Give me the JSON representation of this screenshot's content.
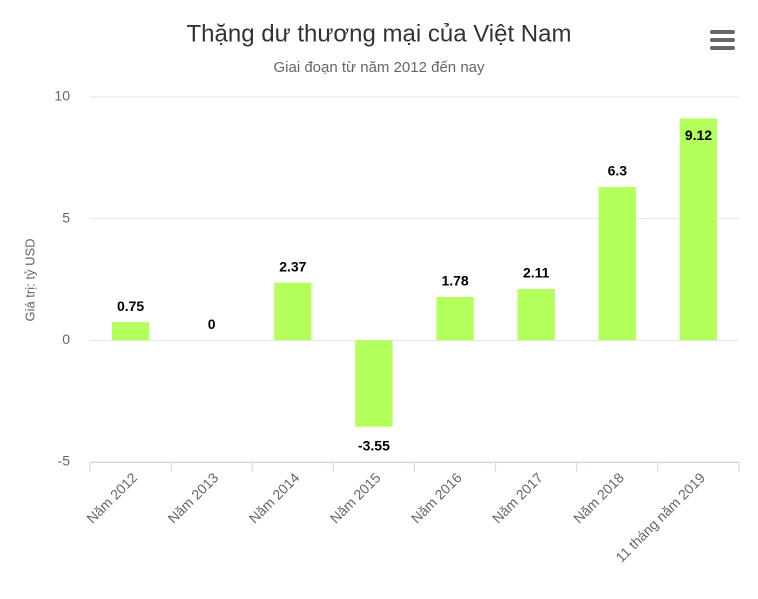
{
  "chart_data": {
    "type": "bar",
    "title": "Thặng dư thương mại của Việt Nam",
    "subtitle": "Giai đoạn từ năm 2012 đến nay",
    "y_axis_label": "Giá trị: tỷ USD",
    "categories": [
      "Năm 2012",
      "Năm 2013",
      "Năm 2014",
      "Năm 2015",
      "Năm 2016",
      "Năm 2017",
      "Năm 2018",
      "11 tháng năm 2019"
    ],
    "values": [
      0.75,
      0,
      2.37,
      -3.55,
      1.78,
      2.11,
      6.3,
      9.12
    ],
    "color": "#b3ff5c",
    "ylim": [
      -5,
      10
    ],
    "yticks": [
      -5,
      0,
      5,
      10
    ],
    "grid": true
  }
}
